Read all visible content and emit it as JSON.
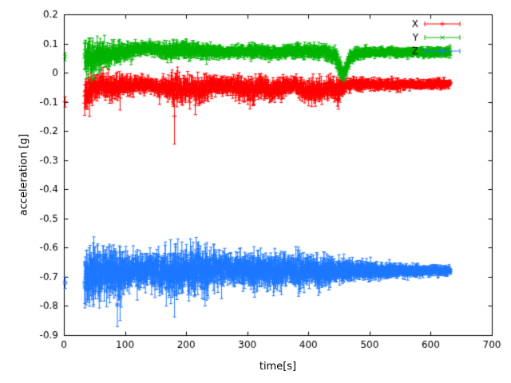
{
  "chart_data": {
    "type": "line",
    "subtype": "errorbars",
    "title": "",
    "xlabel": "time[s]",
    "ylabel": "acceleration [g]",
    "xlim": [
      0,
      700
    ],
    "ylim": [
      -0.9,
      0.2
    ],
    "xtick_values": [
      0,
      100,
      200,
      300,
      400,
      500,
      600,
      700
    ],
    "xtick_labels": [
      "0",
      "100",
      "200",
      "300",
      "400",
      "500",
      "600",
      "700"
    ],
    "ytick_values": [
      0.2,
      0.1,
      0,
      -0.1,
      -0.2,
      -0.3,
      -0.4,
      -0.5,
      -0.6,
      -0.7,
      -0.8,
      -0.9
    ],
    "ytick_labels": [
      "0.2",
      "0.1",
      "0",
      "-0.1",
      "-0.2",
      "-0.3",
      "-0.4",
      "-0.5",
      "-0.6",
      "-0.7",
      "-0.8",
      "-0.9"
    ],
    "grid": false,
    "legend_position": "top-right",
    "background": "#ffffff",
    "axis_color": "#000000",
    "sample_step": 0.5,
    "seed": 1337,
    "series": [
      {
        "name": "X",
        "color": "#ff0000",
        "marker": "plus",
        "range": [
          34,
          632
        ],
        "initial_point": {
          "t": 2,
          "y": -0.1,
          "err": 0.018
        },
        "envelope": [
          [
            35,
            -0.07,
            0.05
          ],
          [
            45,
            -0.05,
            0.035
          ],
          [
            60,
            -0.042,
            0.03
          ],
          [
            80,
            -0.05,
            0.032
          ],
          [
            95,
            -0.045,
            0.028
          ],
          [
            120,
            -0.04,
            0.02
          ],
          [
            150,
            -0.045,
            0.02
          ],
          [
            172,
            -0.05,
            0.028
          ],
          [
            185,
            -0.055,
            0.04
          ],
          [
            200,
            -0.05,
            0.03
          ],
          [
            225,
            -0.055,
            0.035
          ],
          [
            255,
            -0.042,
            0.022
          ],
          [
            285,
            -0.05,
            0.03
          ],
          [
            308,
            -0.068,
            0.032
          ],
          [
            322,
            -0.042,
            0.025
          ],
          [
            338,
            -0.06,
            0.03
          ],
          [
            358,
            -0.05,
            0.026
          ],
          [
            378,
            -0.042,
            0.02
          ],
          [
            398,
            -0.058,
            0.03
          ],
          [
            418,
            -0.068,
            0.032
          ],
          [
            434,
            -0.05,
            0.024
          ],
          [
            448,
            -0.058,
            0.032
          ],
          [
            462,
            -0.042,
            0.018
          ],
          [
            500,
            -0.04,
            0.015
          ],
          [
            560,
            -0.04,
            0.012
          ],
          [
            630,
            -0.038,
            0.012
          ]
        ],
        "spikes": [
          [
            42,
            -0.15
          ],
          [
            92,
            -0.128
          ],
          [
            181,
            -0.245
          ],
          [
            310,
            -0.11
          ],
          [
            449,
            -0.125
          ]
        ]
      },
      {
        "name": "Y",
        "color": "#00b400",
        "marker": "cross",
        "range": [
          34,
          632
        ],
        "initial_point": {
          "t": 2,
          "y": 0.055,
          "err": 0.014
        },
        "envelope": [
          [
            35,
            0.05,
            0.045
          ],
          [
            48,
            0.055,
            0.042
          ],
          [
            65,
            0.06,
            0.038
          ],
          [
            85,
            0.068,
            0.028
          ],
          [
            105,
            0.075,
            0.02
          ],
          [
            130,
            0.085,
            0.018
          ],
          [
            150,
            0.08,
            0.018
          ],
          [
            165,
            0.075,
            0.02
          ],
          [
            195,
            0.08,
            0.022
          ],
          [
            215,
            0.078,
            0.02
          ],
          [
            245,
            0.072,
            0.016
          ],
          [
            275,
            0.07,
            0.014
          ],
          [
            305,
            0.076,
            0.018
          ],
          [
            340,
            0.07,
            0.016
          ],
          [
            370,
            0.074,
            0.016
          ],
          [
            400,
            0.072,
            0.018
          ],
          [
            428,
            0.068,
            0.018
          ],
          [
            442,
            0.062,
            0.02
          ],
          [
            452,
            0.015,
            0.025
          ],
          [
            458,
            -0.01,
            0.018
          ],
          [
            466,
            0.045,
            0.02
          ],
          [
            478,
            0.068,
            0.014
          ],
          [
            520,
            0.07,
            0.012
          ],
          [
            630,
            0.07,
            0.011
          ]
        ],
        "spikes": [
          [
            40,
            0.005
          ],
          [
            200,
            0.115
          ],
          [
            457,
            -0.03
          ]
        ]
      },
      {
        "name": "Z",
        "color": "#1e78ff",
        "marker": "star",
        "range": [
          34,
          632
        ],
        "initial_point": {
          "t": 2,
          "y": -0.72,
          "err": 0.02
        },
        "envelope": [
          [
            35,
            -0.7,
            0.068
          ],
          [
            50,
            -0.69,
            0.075
          ],
          [
            68,
            -0.685,
            0.06
          ],
          [
            88,
            -0.69,
            0.072
          ],
          [
            104,
            -0.68,
            0.046
          ],
          [
            128,
            -0.675,
            0.04
          ],
          [
            152,
            -0.68,
            0.05
          ],
          [
            178,
            -0.685,
            0.058
          ],
          [
            198,
            -0.68,
            0.054
          ],
          [
            222,
            -0.68,
            0.06
          ],
          [
            248,
            -0.675,
            0.046
          ],
          [
            278,
            -0.675,
            0.036
          ],
          [
            308,
            -0.68,
            0.05
          ],
          [
            328,
            -0.675,
            0.036
          ],
          [
            344,
            -0.68,
            0.046
          ],
          [
            364,
            -0.675,
            0.036
          ],
          [
            384,
            -0.68,
            0.046
          ],
          [
            404,
            -0.675,
            0.036
          ],
          [
            424,
            -0.68,
            0.044
          ],
          [
            448,
            -0.678,
            0.03
          ],
          [
            478,
            -0.678,
            0.026
          ],
          [
            515,
            -0.68,
            0.02
          ],
          [
            555,
            -0.68,
            0.016
          ],
          [
            595,
            -0.68,
            0.013
          ],
          [
            630,
            -0.68,
            0.012
          ]
        ],
        "spikes": [
          [
            48,
            -0.802
          ],
          [
            92,
            -0.85
          ],
          [
            120,
            -0.78
          ],
          [
            181,
            -0.838
          ],
          [
            231,
            -0.8
          ],
          [
            258,
            -0.775
          ]
        ]
      }
    ]
  }
}
